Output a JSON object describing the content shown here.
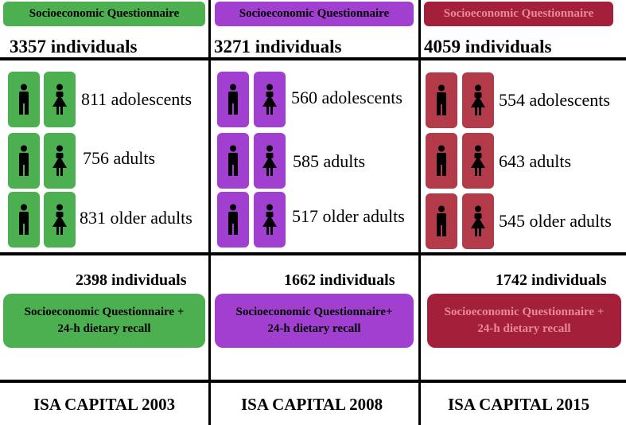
{
  "columns": [
    {
      "questionnaire_label": "Socioeconomic Questionnaire",
      "total_label": "3357 individuals",
      "groups": [
        "811 adolescents",
        "756 adults",
        "831 older adults"
      ],
      "recall_total_label": "2398 individuals",
      "recall_line1": "Socioeconomic Questionnaire +",
      "recall_line2": "24-h dietary recall",
      "survey_label": "ISA CAPITAL 2003",
      "color": "#4caf50",
      "text_color": "#000000"
    },
    {
      "questionnaire_label": "Socioeconomic Questionnaire",
      "total_label": "3271 individuals",
      "groups": [
        "560 adolescents",
        "585 adults",
        "517 older adults"
      ],
      "recall_total_label": "1662 individuals",
      "recall_line1": "Socioeconomic Questionnaire+",
      "recall_line2": "24-h dietary recall",
      "survey_label": "ISA CAPITAL 2008",
      "color": "#a13fd0",
      "text_color": "#000000"
    },
    {
      "questionnaire_label": "Socioeconomic Questionnaire",
      "total_label": "4059 individuals",
      "groups": [
        "554 adolescents",
        "643 adults",
        "545 older adults"
      ],
      "recall_total_label": "1742 individuals",
      "recall_line1": "Socioeconomic Questionnaire +",
      "recall_line2": "24-h dietary recall",
      "survey_label": "ISA CAPITAL 2015",
      "color": "#a31f3a",
      "text_color": "#e88a9c",
      "tile_color": "#b23a49"
    }
  ],
  "icons": {
    "male": "male-figure-icon",
    "female": "female-figure-icon"
  }
}
